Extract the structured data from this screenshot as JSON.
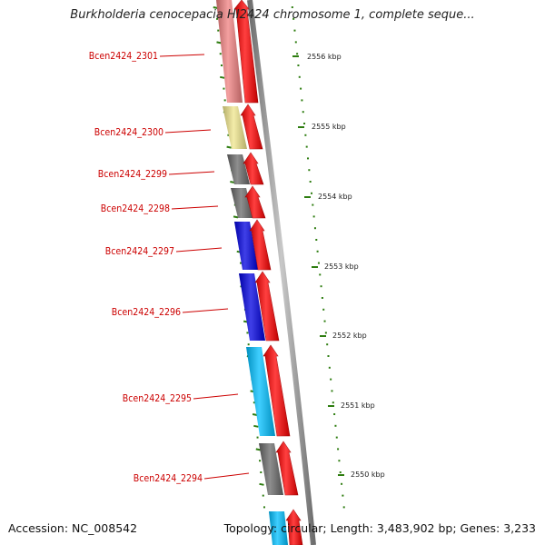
{
  "title": "Burkholderia cenocepacia HI2424 chromosome 1, complete seque...",
  "footer": {
    "accession": "Accession: NC_008542",
    "topology": "Topology: circular; Length: 3,483,902 bp; Genes: 3,233"
  },
  "colors": {
    "gene_arrow": "#ff0000",
    "label": "#cc0000",
    "tick": "#2e7d10",
    "backbone": "#8c8c8c"
  },
  "genes": [
    {
      "id": "Bcen2424_2301",
      "color": "#f08080"
    },
    {
      "id": "Bcen2424_2300",
      "color": "#f0e68c"
    },
    {
      "id": "Bcen2424_2299",
      "color": "#696969"
    },
    {
      "id": "Bcen2424_2298",
      "color": "#696969"
    },
    {
      "id": "Bcen2424_2297",
      "color": "#0000e0"
    },
    {
      "id": "Bcen2424_2296",
      "color": "#0000e0"
    },
    {
      "id": "Bcen2424_2295",
      "color": "#00bfff"
    },
    {
      "id": "Bcen2424_2294",
      "color": "#696969"
    },
    {
      "id": "",
      "color": "#00bfff"
    }
  ],
  "kbp_labels": [
    "2556 kbp",
    "2555 kbp",
    "2554 kbp",
    "2553 kbp",
    "2552 kbp",
    "2551 kbp",
    "2550 kbp"
  ]
}
